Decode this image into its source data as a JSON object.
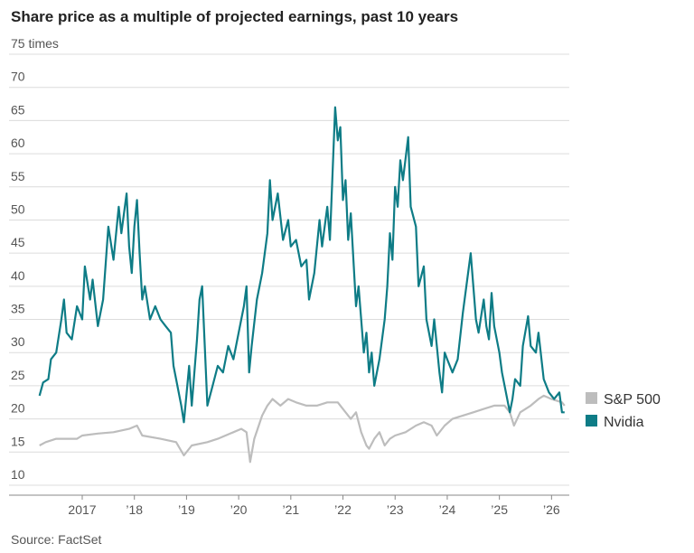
{
  "chart_data": {
    "type": "line",
    "title": "Share price as a multiple of projected earnings, past 10 years",
    "source": "Source: FactSet",
    "xlim": [
      2016,
      2026.5
    ],
    "xticks": [
      2017,
      {
        "value": 2018,
        "label": "’18"
      },
      {
        "value": 2019,
        "label": "’19"
      },
      {
        "value": 2020,
        "label": "’20"
      },
      {
        "value": 2021,
        "label": "’21"
      },
      {
        "value": 2022,
        "label": "’22"
      },
      {
        "value": 2023,
        "label": "’23"
      },
      {
        "value": 2024,
        "label": "’24"
      },
      {
        "value": 2025,
        "label": "’25"
      },
      {
        "value": 2026,
        "label": "’26"
      }
    ],
    "ylim": [
      10,
      75
    ],
    "yticks": [
      10,
      15,
      20,
      25,
      30,
      35,
      40,
      45,
      50,
      55,
      60,
      65,
      70,
      {
        "value": 75,
        "label": "75 times"
      }
    ],
    "grid": true,
    "legend": "right",
    "series": [
      {
        "name": "S&P 500",
        "color": "#bdbdbd",
        "x": [
          2016.18,
          2016.3,
          2016.5,
          2016.7,
          2016.9,
          2017.0,
          2017.3,
          2017.6,
          2017.9,
          2018.05,
          2018.15,
          2018.5,
          2018.8,
          2018.95,
          2019.1,
          2019.4,
          2019.6,
          2019.9,
          2020.05,
          2020.15,
          2020.22,
          2020.3,
          2020.45,
          2020.55,
          2020.65,
          2020.8,
          2020.95,
          2021.1,
          2021.3,
          2021.5,
          2021.7,
          2021.9,
          2022.0,
          2022.15,
          2022.25,
          2022.35,
          2022.45,
          2022.5,
          2022.6,
          2022.7,
          2022.8,
          2022.9,
          2023.0,
          2023.2,
          2023.4,
          2023.55,
          2023.7,
          2023.8,
          2023.95,
          2024.1,
          2024.3,
          2024.5,
          2024.7,
          2024.9,
          2025.1,
          2025.2,
          2025.28,
          2025.4,
          2025.6,
          2025.75,
          2025.85,
          2026.0,
          2026.2,
          2026.25
        ],
        "values": [
          16,
          16.5,
          17,
          17,
          17,
          17.5,
          17.8,
          18,
          18.5,
          19,
          17.5,
          17,
          16.5,
          14.5,
          16,
          16.5,
          17,
          18,
          18.5,
          18,
          13.5,
          17,
          20.5,
          22,
          23,
          22,
          23,
          22.5,
          22,
          22,
          22.5,
          22.5,
          21.5,
          20,
          21,
          18,
          16,
          15.5,
          17,
          18,
          16,
          17,
          17.5,
          18,
          19,
          19.5,
          19,
          17.5,
          19,
          20,
          20.5,
          21,
          21.5,
          22,
          22,
          21,
          19,
          21,
          22,
          23,
          23.5,
          23,
          22.5,
          22
        ]
      },
      {
        "name": "Nvidia",
        "color": "#0e7c86",
        "x": [
          2016.18,
          2016.25,
          2016.35,
          2016.4,
          2016.5,
          2016.6,
          2016.65,
          2016.7,
          2016.8,
          2016.9,
          2017.0,
          2017.05,
          2017.15,
          2017.2,
          2017.3,
          2017.4,
          2017.5,
          2017.6,
          2017.7,
          2017.75,
          2017.85,
          2017.9,
          2017.95,
          2018.0,
          2018.05,
          2018.1,
          2018.15,
          2018.2,
          2018.3,
          2018.4,
          2018.5,
          2018.6,
          2018.7,
          2018.75,
          2018.8,
          2018.9,
          2018.95,
          2019.05,
          2019.1,
          2019.2,
          2019.25,
          2019.3,
          2019.35,
          2019.4,
          2019.5,
          2019.6,
          2019.7,
          2019.8,
          2019.9,
          2020.0,
          2020.1,
          2020.15,
          2020.2,
          2020.25,
          2020.35,
          2020.45,
          2020.55,
          2020.6,
          2020.65,
          2020.75,
          2020.85,
          2020.95,
          2021.0,
          2021.1,
          2021.2,
          2021.3,
          2021.35,
          2021.45,
          2021.55,
          2021.6,
          2021.7,
          2021.75,
          2021.8,
          2021.85,
          2021.9,
          2021.95,
          2022.0,
          2022.05,
          2022.1,
          2022.15,
          2022.25,
          2022.3,
          2022.4,
          2022.45,
          2022.5,
          2022.55,
          2022.6,
          2022.7,
          2022.8,
          2022.85,
          2022.9,
          2022.95,
          2023.0,
          2023.05,
          2023.1,
          2023.15,
          2023.25,
          2023.3,
          2023.4,
          2023.45,
          2023.55,
          2023.6,
          2023.7,
          2023.75,
          2023.85,
          2023.9,
          2023.95,
          2024.0,
          2024.1,
          2024.2,
          2024.3,
          2024.45,
          2024.5,
          2024.55,
          2024.6,
          2024.7,
          2024.75,
          2024.8,
          2024.85,
          2024.9,
          2025.0,
          2025.05,
          2025.1,
          2025.2,
          2025.25,
          2025.3,
          2025.4,
          2025.45,
          2025.55,
          2025.6,
          2025.7,
          2025.75,
          2025.85,
          2025.95,
          2026.05,
          2026.15,
          2026.2,
          2026.25
        ],
        "values": [
          23.5,
          25.5,
          26,
          29,
          30,
          35,
          38,
          33,
          32,
          37,
          35,
          43,
          38,
          41,
          34,
          38,
          49,
          44,
          52,
          48,
          54,
          46,
          42,
          49,
          53,
          45,
          38,
          40,
          35,
          37,
          35,
          34,
          33,
          28,
          26,
          22,
          19.5,
          28,
          22,
          32,
          38,
          40,
          31,
          22,
          25,
          28,
          27,
          31,
          29,
          33,
          37,
          40,
          27,
          31,
          38,
          42,
          48,
          56,
          50,
          54,
          47,
          50,
          46,
          47,
          43,
          44,
          38,
          42,
          50,
          46,
          52,
          47,
          57,
          67,
          62,
          64,
          53,
          56,
          47,
          51,
          37,
          40,
          30,
          33,
          27,
          30,
          25,
          29,
          35,
          40,
          48,
          44,
          55,
          52,
          59,
          56,
          62.5,
          52,
          49,
          40,
          43,
          35,
          31,
          35,
          27,
          24,
          30,
          29,
          27,
          29,
          36,
          45,
          40,
          35,
          33,
          38,
          34,
          32,
          39,
          34,
          30,
          27,
          25,
          21,
          23,
          26,
          25,
          31,
          35.5,
          31,
          30,
          33,
          26,
          24,
          23,
          24,
          21,
          21
        ]
      }
    ]
  }
}
